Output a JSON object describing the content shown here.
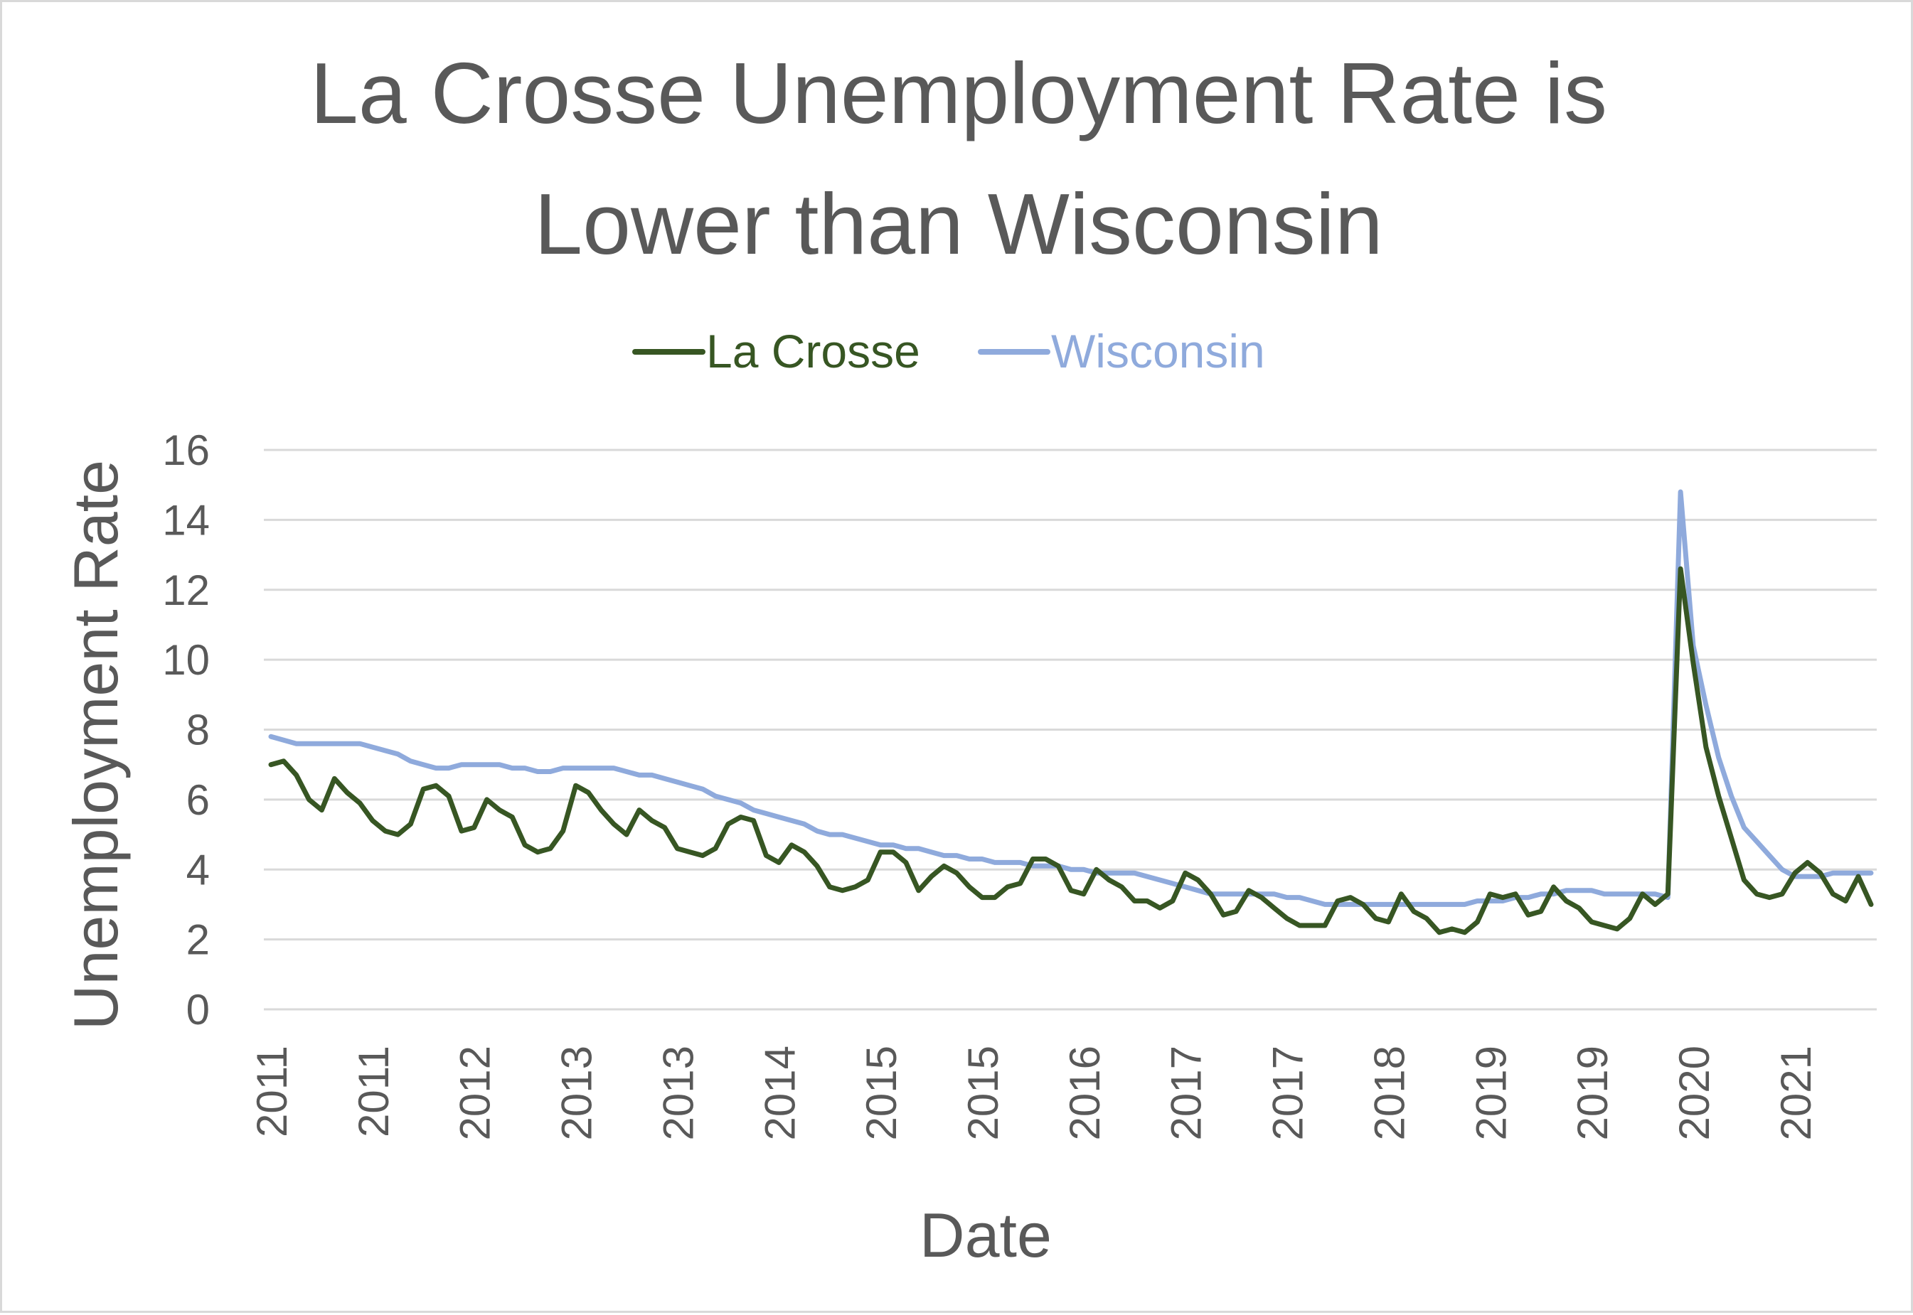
{
  "chart_data": {
    "type": "line",
    "title_lines": [
      "La Crosse Unemployment Rate is",
      "Lower than Wisconsin"
    ],
    "xlabel": "Date",
    "ylabel": "Unemployment Rate",
    "ylim": [
      0,
      16
    ],
    "yticks": [
      "0",
      "2",
      "4",
      "6",
      "8",
      "10",
      "12",
      "14",
      "16"
    ],
    "xticks": [
      "2011",
      "2011",
      "2012",
      "2013",
      "2013",
      "2014",
      "2015",
      "2015",
      "2016",
      "2017",
      "2017",
      "2018",
      "2019",
      "2019",
      "2020",
      "2021"
    ],
    "grid": "horizontal",
    "legend_position": "top",
    "series": [
      {
        "name": "La Crosse",
        "color": "#375623",
        "values": [
          7.0,
          7.1,
          6.7,
          6.0,
          5.7,
          6.6,
          6.2,
          5.9,
          5.4,
          5.1,
          5.0,
          5.3,
          6.3,
          6.4,
          6.1,
          5.1,
          5.2,
          6.0,
          5.7,
          5.5,
          4.7,
          4.5,
          4.6,
          5.1,
          6.4,
          6.2,
          5.7,
          5.3,
          5.0,
          5.7,
          5.4,
          5.2,
          4.6,
          4.5,
          4.4,
          4.6,
          5.3,
          5.5,
          5.4,
          4.4,
          4.2,
          4.7,
          4.5,
          4.1,
          3.5,
          3.4,
          3.5,
          3.7,
          4.5,
          4.5,
          4.2,
          3.4,
          3.8,
          4.1,
          3.9,
          3.5,
          3.2,
          3.2,
          3.5,
          3.6,
          4.3,
          4.3,
          4.1,
          3.4,
          3.3,
          4.0,
          3.7,
          3.5,
          3.1,
          3.1,
          2.9,
          3.1,
          3.9,
          3.7,
          3.3,
          2.7,
          2.8,
          3.4,
          3.2,
          2.9,
          2.6,
          2.4,
          2.4,
          2.4,
          3.1,
          3.2,
          3.0,
          2.6,
          2.5,
          3.3,
          2.8,
          2.6,
          2.2,
          2.3,
          2.2,
          2.5,
          3.3,
          3.2,
          3.3,
          2.7,
          2.8,
          3.5,
          3.1,
          2.9,
          2.5,
          2.4,
          2.3,
          2.6,
          3.3,
          3.0,
          3.3,
          12.6,
          9.9,
          7.5,
          6.1,
          4.9,
          3.7,
          3.3,
          3.2,
          3.3,
          3.9,
          4.2,
          3.9,
          3.3,
          3.1,
          3.8,
          3.0
        ]
      },
      {
        "name": "Wisconsin",
        "color": "#8faadc",
        "values": [
          7.8,
          7.7,
          7.6,
          7.6,
          7.6,
          7.6,
          7.6,
          7.6,
          7.5,
          7.4,
          7.3,
          7.1,
          7.0,
          6.9,
          6.9,
          7.0,
          7.0,
          7.0,
          7.0,
          6.9,
          6.9,
          6.8,
          6.8,
          6.9,
          6.9,
          6.9,
          6.9,
          6.9,
          6.8,
          6.7,
          6.7,
          6.6,
          6.5,
          6.4,
          6.3,
          6.1,
          6.0,
          5.9,
          5.7,
          5.6,
          5.5,
          5.4,
          5.3,
          5.1,
          5.0,
          5.0,
          4.9,
          4.8,
          4.7,
          4.7,
          4.6,
          4.6,
          4.5,
          4.4,
          4.4,
          4.3,
          4.3,
          4.2,
          4.2,
          4.2,
          4.1,
          4.1,
          4.1,
          4.0,
          4.0,
          3.9,
          3.9,
          3.9,
          3.9,
          3.8,
          3.7,
          3.6,
          3.5,
          3.4,
          3.3,
          3.3,
          3.3,
          3.3,
          3.3,
          3.3,
          3.2,
          3.2,
          3.1,
          3.0,
          3.0,
          3.0,
          3.0,
          3.0,
          3.0,
          3.0,
          3.0,
          3.0,
          3.0,
          3.0,
          3.0,
          3.1,
          3.1,
          3.1,
          3.2,
          3.2,
          3.3,
          3.3,
          3.4,
          3.4,
          3.4,
          3.3,
          3.3,
          3.3,
          3.3,
          3.3,
          3.2,
          14.8,
          10.4,
          8.7,
          7.2,
          6.1,
          5.2,
          4.8,
          4.4,
          4.0,
          3.8,
          3.8,
          3.8,
          3.9,
          3.9,
          3.9,
          3.9
        ]
      }
    ]
  }
}
